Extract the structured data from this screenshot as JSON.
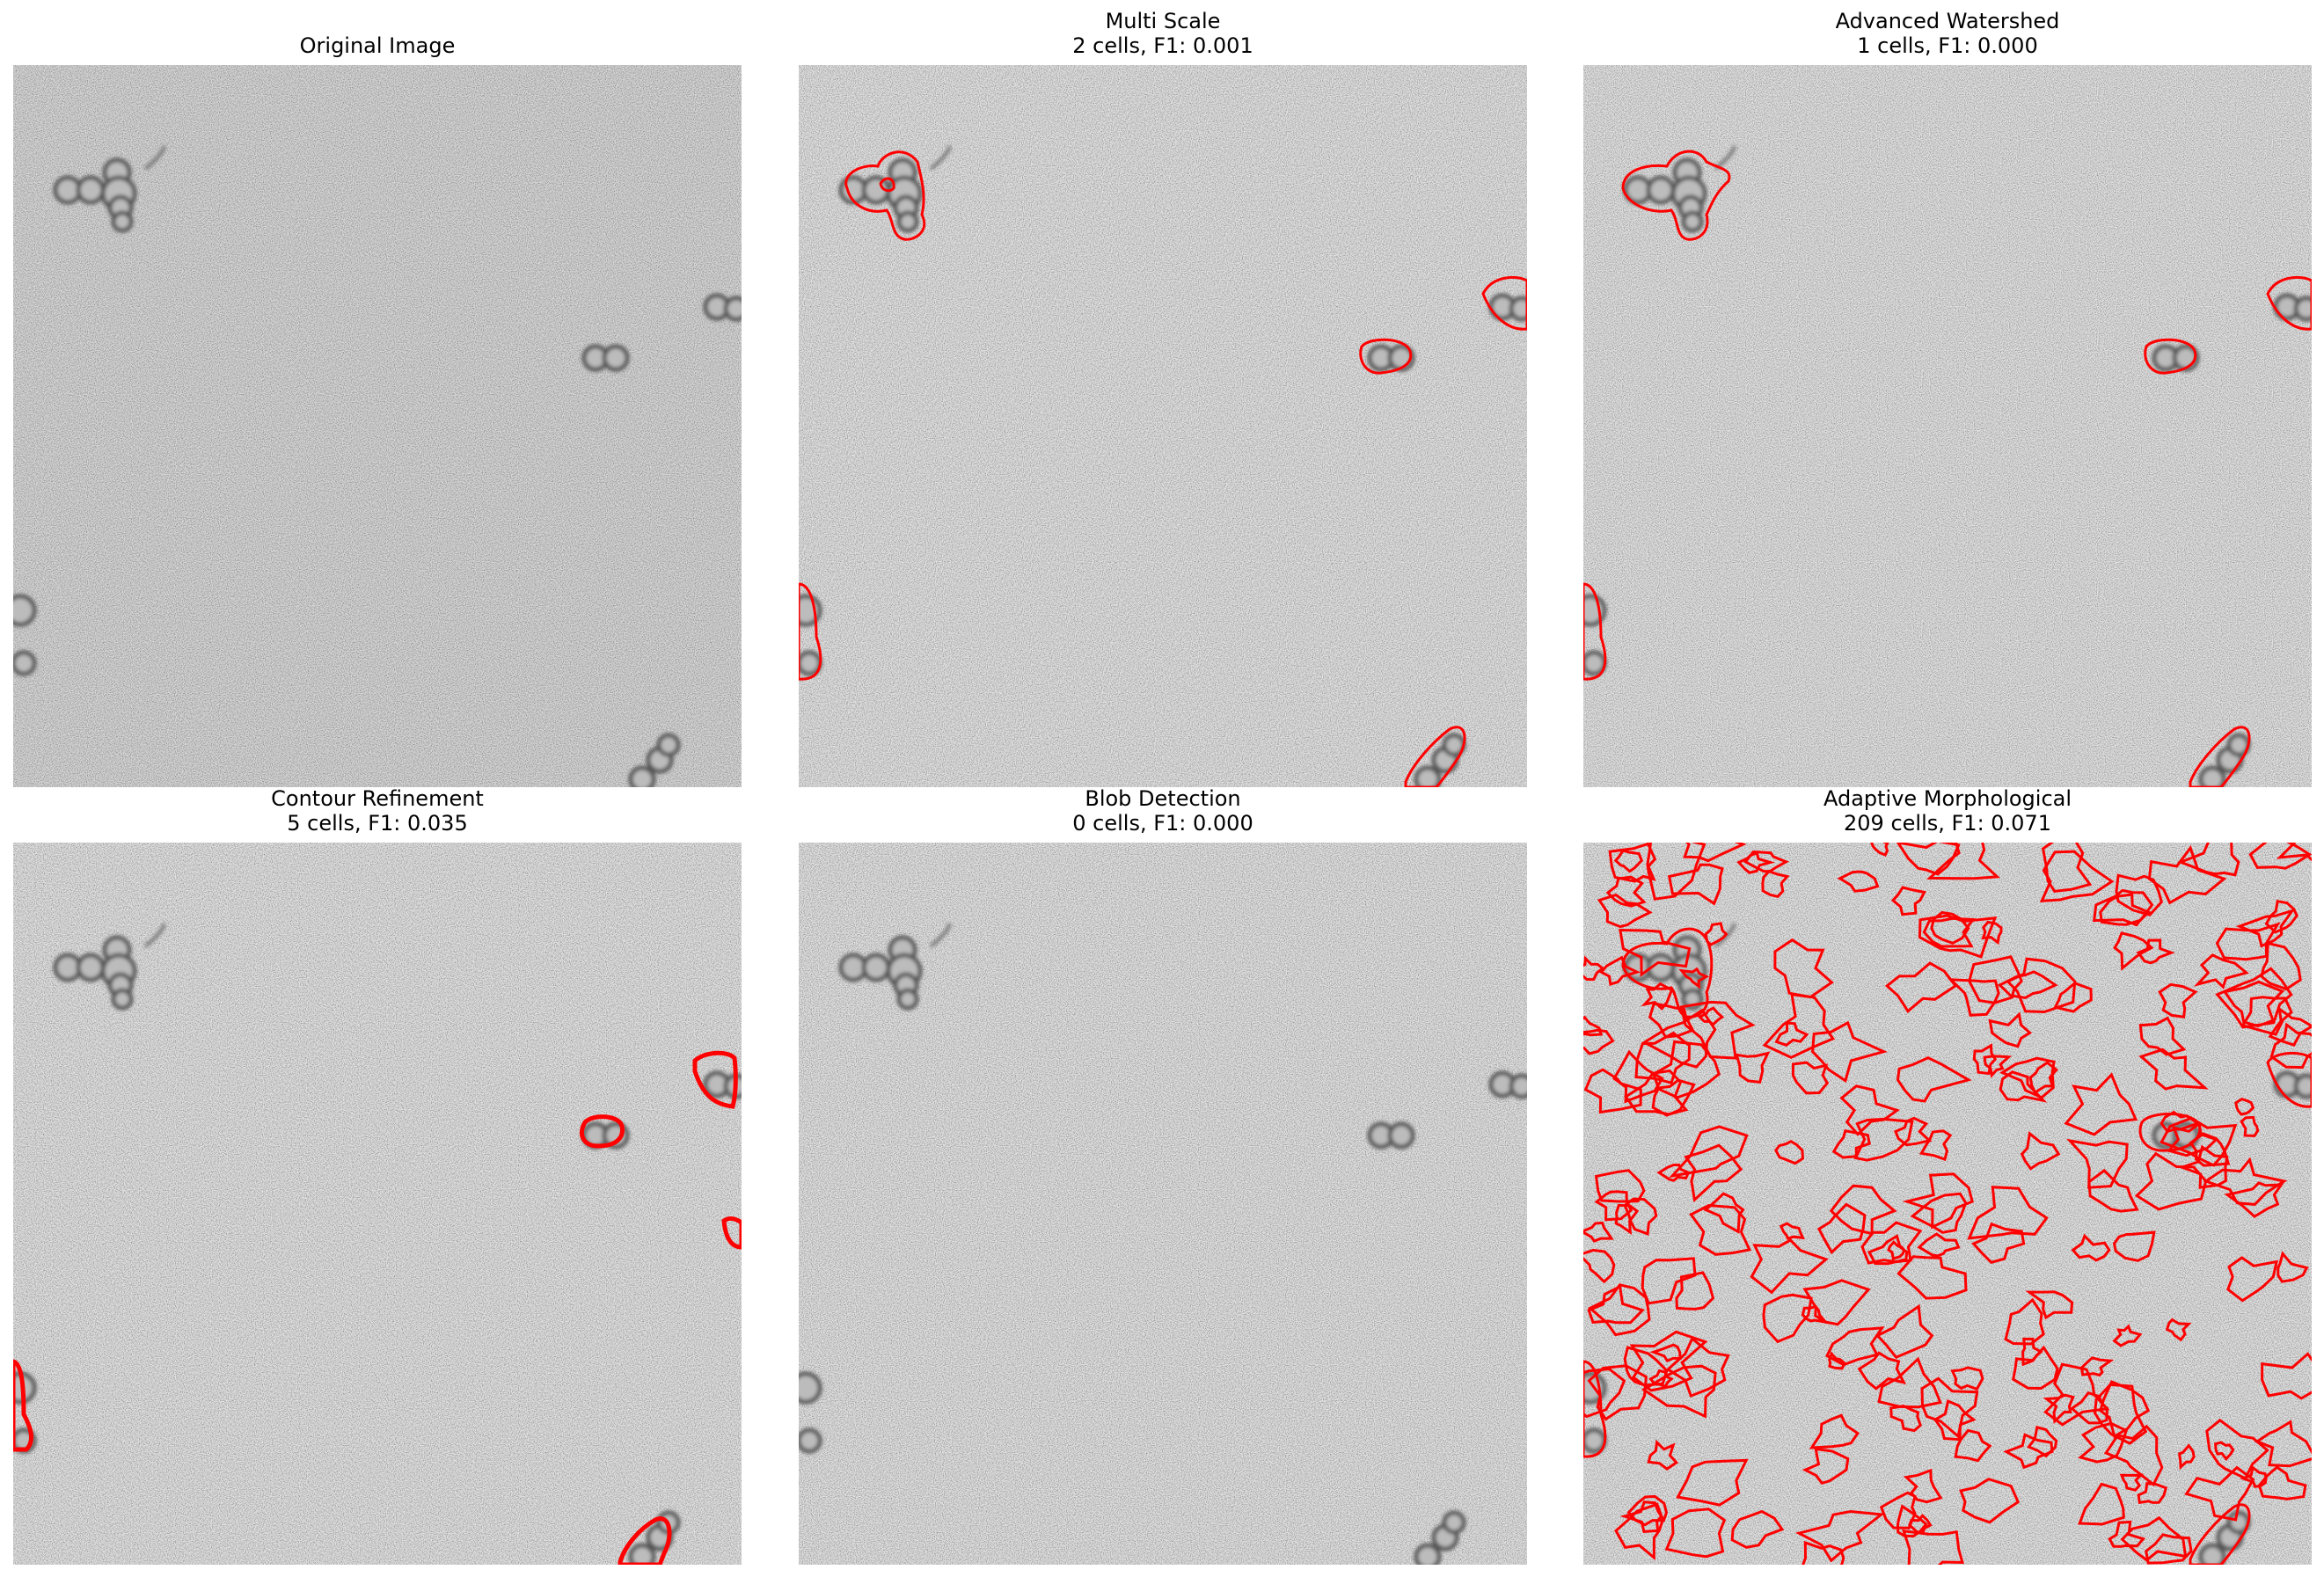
{
  "panels": [
    {
      "id": "original",
      "title": "Original Image",
      "subtitle": "",
      "overlay": "none"
    },
    {
      "id": "multi-scale",
      "title": "Multi Scale",
      "subtitle": "2 cells, F1: 0.001",
      "overlay": "outline"
    },
    {
      "id": "advanced-watershed",
      "title": "Advanced Watershed",
      "subtitle": "1 cells, F1: 0.000",
      "overlay": "outline"
    },
    {
      "id": "contour-refinement",
      "title": "Contour Refinement",
      "subtitle": "5 cells, F1: 0.035",
      "overlay": "thick-outline"
    },
    {
      "id": "blob-detection",
      "title": "Blob Detection",
      "subtitle": "0 cells, F1: 0.000",
      "overlay": "none"
    },
    {
      "id": "adaptive-morphological",
      "title": "Adaptive Morphological",
      "subtitle": "209 cells, F1: 0.071",
      "overlay": "dense"
    }
  ],
  "colors": {
    "background": "#e4e4e4",
    "cell": "#555555",
    "outline": "#ff0000"
  }
}
